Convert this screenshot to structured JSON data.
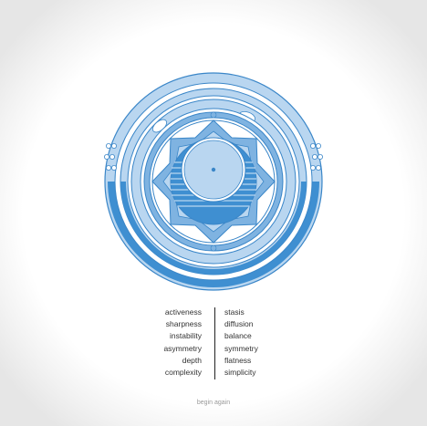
{
  "colors": {
    "light": "#b9d6f0",
    "mid": "#7fb3e1",
    "dark": "#3f8fd1",
    "stroke": "#3a86c8",
    "text": "#333333",
    "link": "#9a9a9a"
  },
  "attributes": {
    "left": [
      "activeness",
      "sharpness",
      "instability",
      "asymmetry",
      "depth",
      "complexity"
    ],
    "right": [
      "stasis",
      "diffusion",
      "balance",
      "symmetry",
      "flatness",
      "simplicity"
    ]
  },
  "begin_again_label": "begin again"
}
